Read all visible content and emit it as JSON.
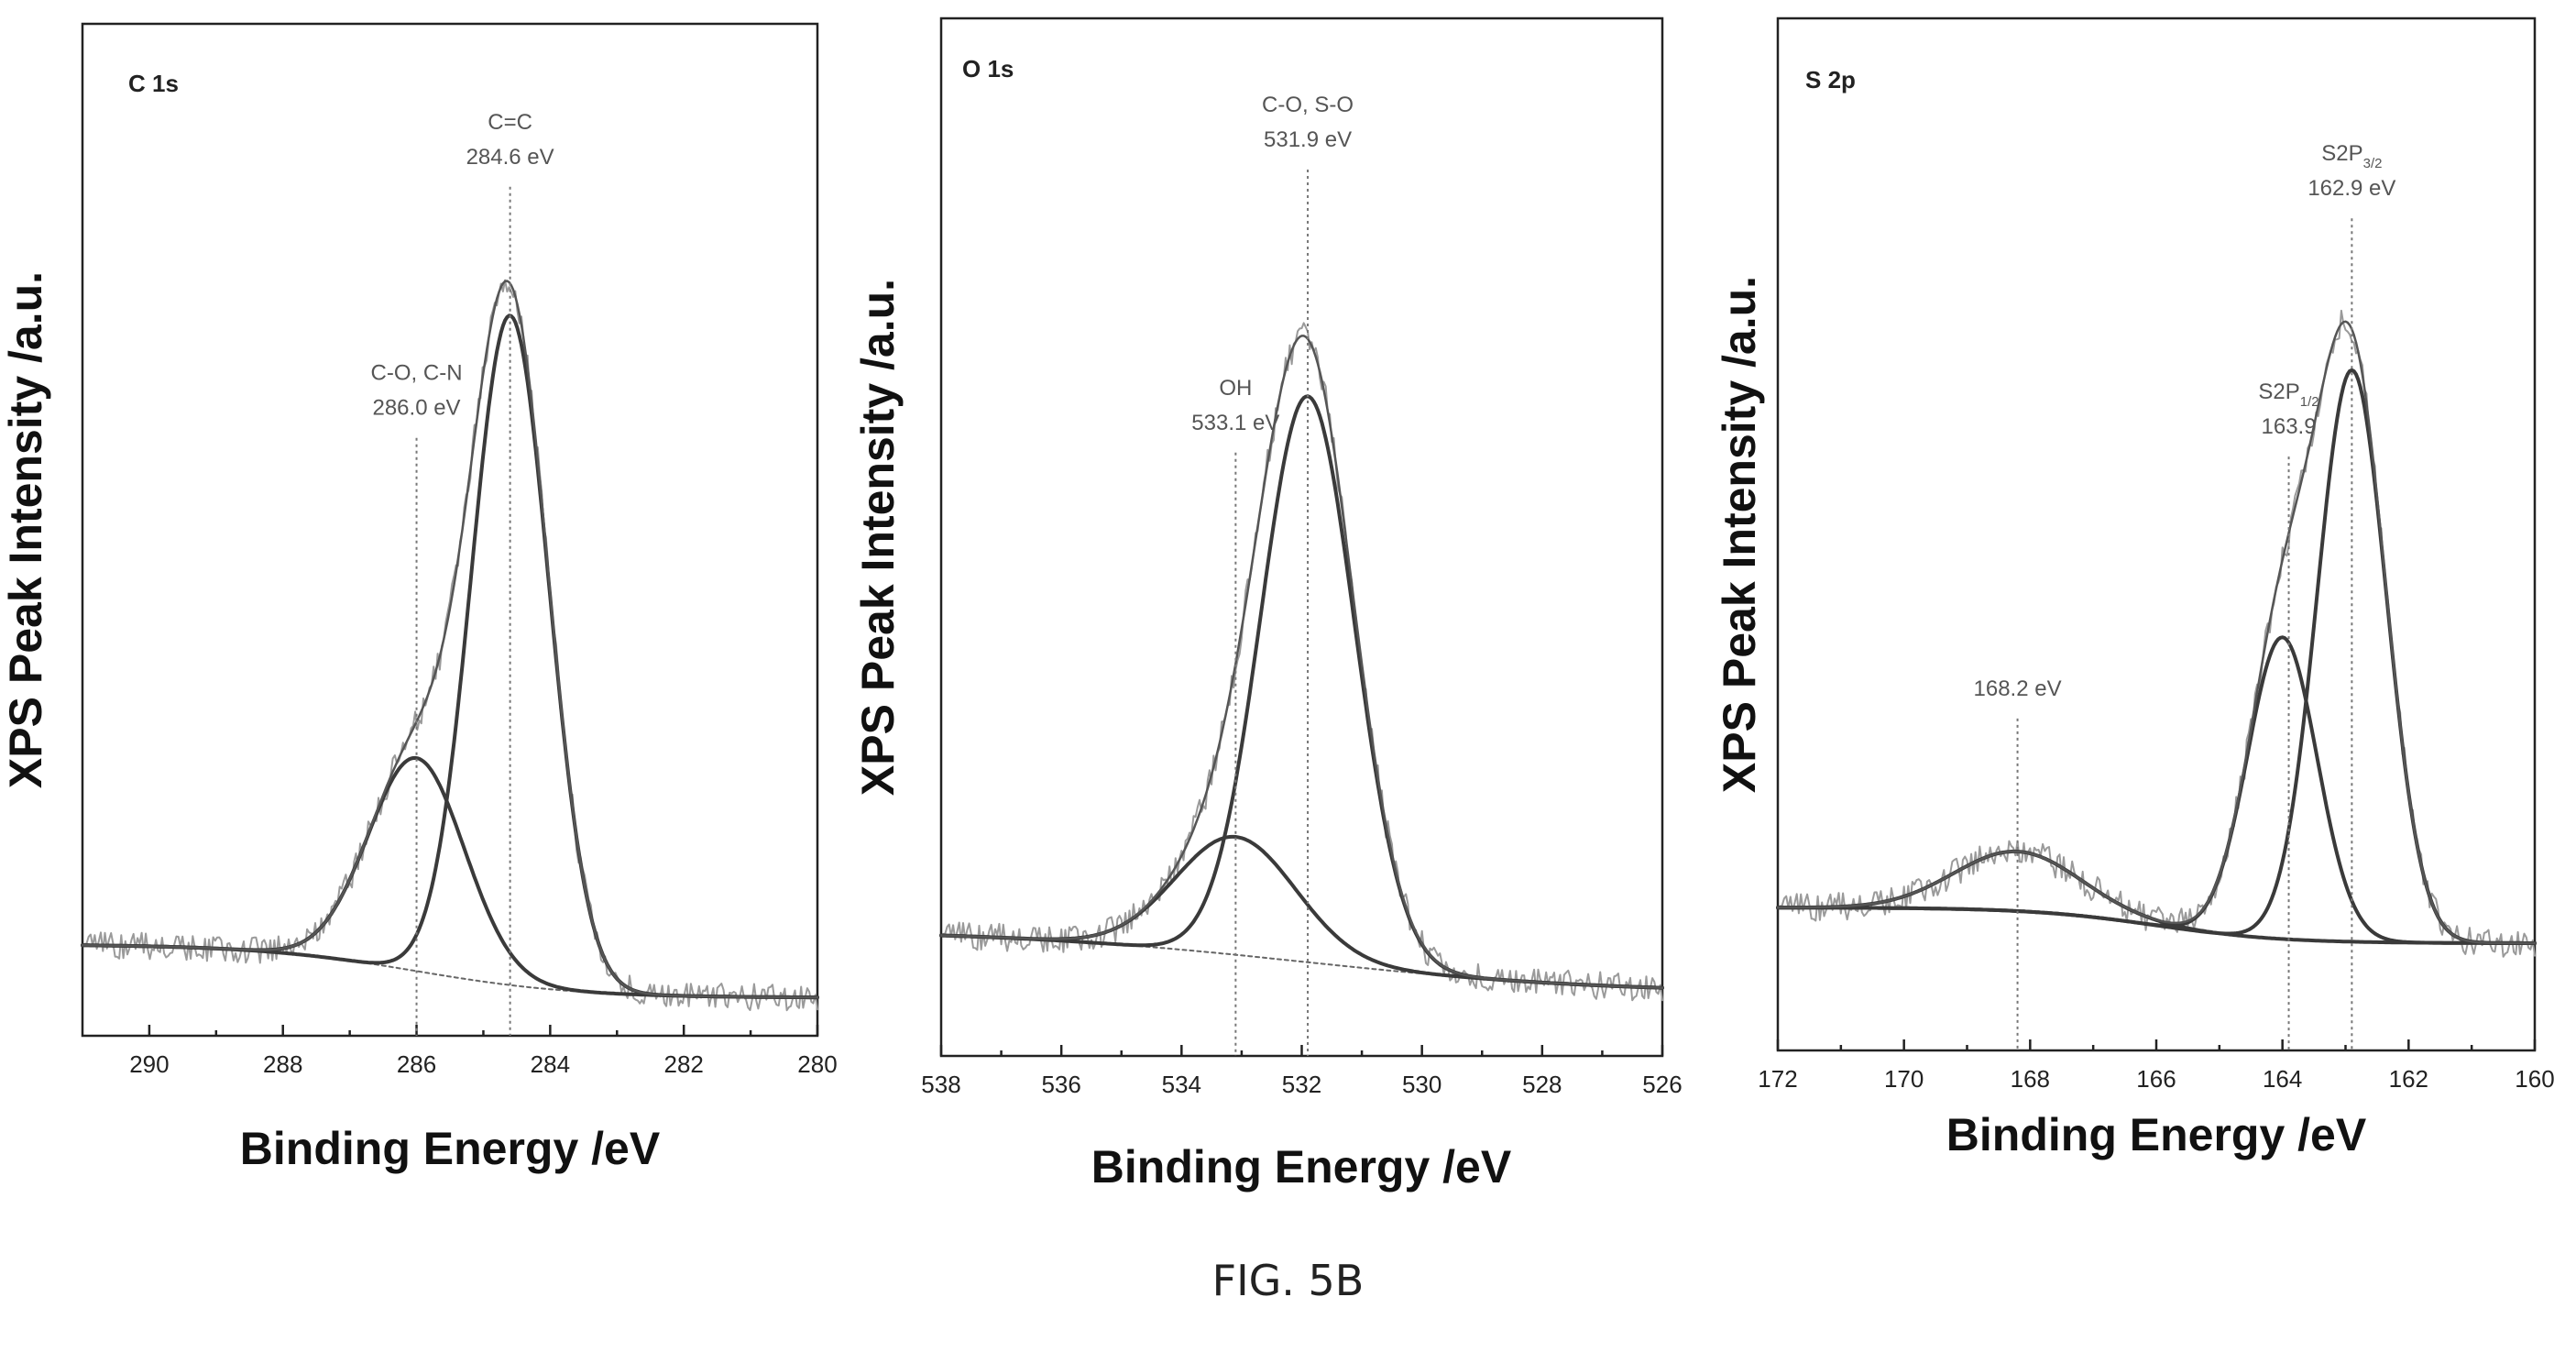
{
  "figure": {
    "caption": "FIG. 5B"
  },
  "chart_data": [
    {
      "type": "line",
      "panel": "C 1s",
      "xlabel": "Binding Energy /eV",
      "ylabel": "XPS Peak Intensity /a.u.",
      "xlim": [
        291,
        280
      ],
      "x_ticks": [
        290,
        288,
        286,
        284,
        282,
        280
      ],
      "x_reversed": true,
      "y_ticks_shown": false,
      "background": {
        "y_start": 0.07,
        "y_end": 0.0,
        "center": 286.0,
        "width": 1.2
      },
      "components": [
        {
          "center": 284.6,
          "height": 0.88,
          "sigma": 0.58
        },
        {
          "center": 286.0,
          "height": 0.28,
          "sigma": 0.72
        }
      ],
      "annotations": [
        {
          "lines": [
            "C=C",
            "284.6 eV"
          ],
          "x": 284.6,
          "label_y": 1.12
        },
        {
          "lines": [
            "C-O, C-N",
            "286.0 eV"
          ],
          "x": 286.0,
          "label_y": 0.79
        }
      ]
    },
    {
      "type": "line",
      "panel": "O 1s",
      "xlabel": "Binding Energy /eV",
      "ylabel": "XPS Peak Intensity /a.u.",
      "xlim": [
        538,
        526
      ],
      "x_ticks": [
        538,
        536,
        534,
        532,
        530,
        528,
        526
      ],
      "x_reversed": true,
      "y_ticks_shown": false,
      "background": {
        "y_start": 0.06,
        "y_end": -0.02,
        "center": 532.0,
        "width": 2.5
      },
      "components": [
        {
          "center": 531.9,
          "height": 0.72,
          "sigma": 0.78
        },
        {
          "center": 533.1,
          "height": 0.15,
          "sigma": 1.0
        }
      ],
      "annotations": [
        {
          "lines": [
            "C-O, S-O",
            "531.9 eV"
          ],
          "x": 531.9,
          "label_y": 1.08
        },
        {
          "lines": [
            "OH",
            "533.1 eV"
          ],
          "x": 533.1,
          "label_y": 0.72
        }
      ]
    },
    {
      "type": "line",
      "panel": "S 2p",
      "xlabel": "Binding Energy /eV",
      "ylabel": "XPS Peak Intensity /a.u.",
      "xlim": [
        172,
        160
      ],
      "x_ticks": [
        172,
        170,
        168,
        166,
        164,
        162,
        160
      ],
      "x_reversed": true,
      "y_ticks_shown": false,
      "background": {
        "y_start": 0.06,
        "y_end": 0.015,
        "center": 166.0,
        "width": 1.0
      },
      "components": [
        {
          "center": 162.9,
          "height": 0.72,
          "sigma": 0.55
        },
        {
          "center": 164.0,
          "height": 0.38,
          "sigma": 0.55
        },
        {
          "center": 168.2,
          "height": 0.075,
          "sigma": 1.0
        }
      ],
      "annotations": [
        {
          "main": "S2P",
          "sub": "3/2",
          "second": "162.9 eV",
          "x": 162.9,
          "label_y": 0.98
        },
        {
          "main": "S2P",
          "sub": "1/2",
          "second": "163.9",
          "x": 163.9,
          "label_y": 0.68
        },
        {
          "lines": [
            "168.2 eV"
          ],
          "x": 168.2,
          "label_y": 0.35
        }
      ]
    }
  ]
}
